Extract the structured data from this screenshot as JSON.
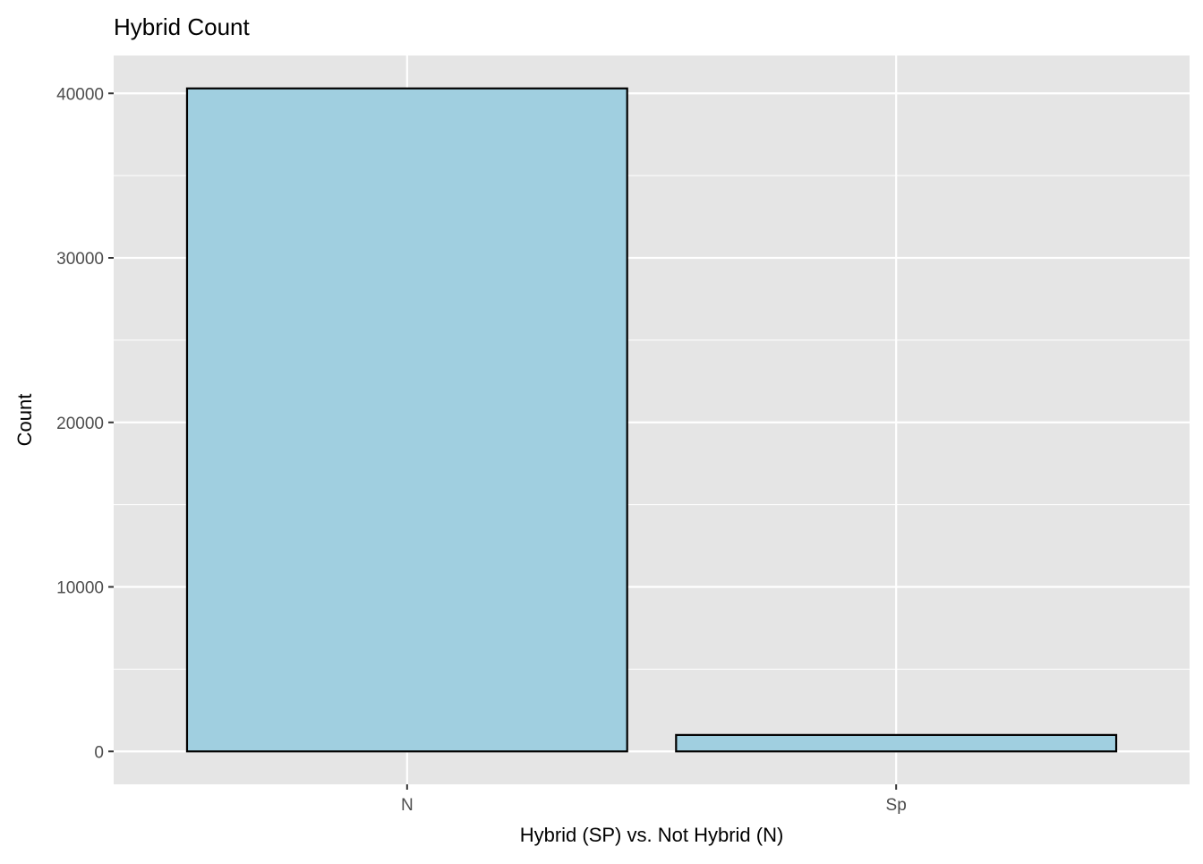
{
  "chart_data": {
    "type": "bar",
    "title": "Hybrid Count",
    "xlabel": "Hybrid (SP) vs. Not Hybrid (N)",
    "ylabel": "Count",
    "categories": [
      "N",
      "Sp"
    ],
    "values": [
      40300,
      1000
    ],
    "ylim": [
      -2000,
      42300
    ],
    "yticks": [
      0,
      10000,
      20000,
      30000,
      40000
    ],
    "ytick_labels": [
      "0",
      "10000",
      "20000",
      "30000",
      "40000"
    ],
    "grid": true,
    "legend": "none",
    "colors": {
      "panel_background": "#e5e5e5",
      "grid_line": "#ffffff",
      "bar_fill": "#a0cfe0",
      "bar_outline": "#000000",
      "tick_label": "#4d4d4d",
      "axis_title": "#000000"
    }
  }
}
